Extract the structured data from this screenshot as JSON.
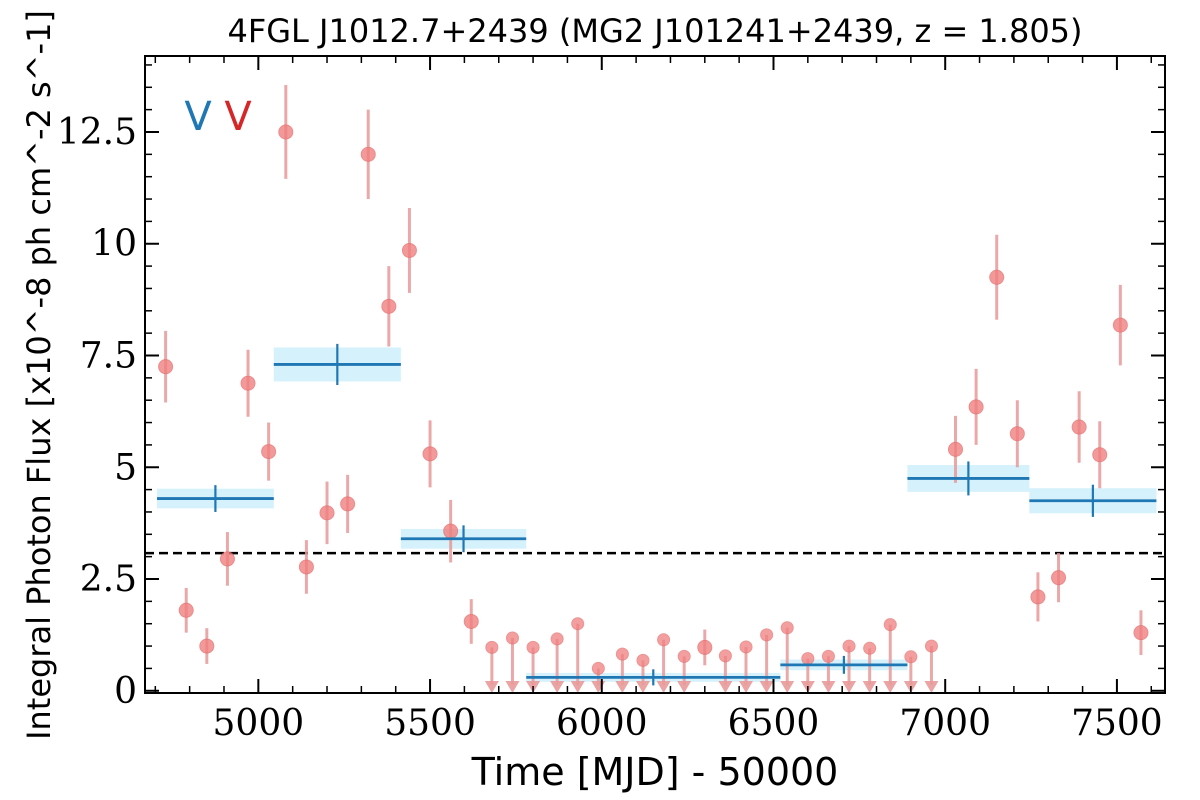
{
  "chart_data": {
    "type": "scatter",
    "title": "4FGL J1012.7+2439 (MG2 J101241+2439, z = 1.805)",
    "xlabel": "Time [MJD] - 50000",
    "ylabel": "Integral Photon Flux [x10^-8 ph cm^-2 s^-1]",
    "xlim": [
      4670,
      7640
    ],
    "ylim": [
      -0.05,
      14.2
    ],
    "xticks": [
      5000,
      5500,
      6000,
      6500,
      7000,
      7500
    ],
    "xtick_labels": [
      "5000",
      "5500",
      "6000",
      "6500",
      "7000",
      "7500"
    ],
    "yticks": [
      0,
      2.5,
      5,
      7.5,
      10,
      12.5
    ],
    "ytick_labels": [
      "0",
      "2.5",
      "5",
      "7.5",
      "10",
      "12.5"
    ],
    "grid": false,
    "reference_line": {
      "y": 3.08,
      "style": "dashed",
      "color": "#000000"
    },
    "markers": [
      {
        "label": "V",
        "color": "#1f77b4"
      },
      {
        "label": "V",
        "color": "#d62728"
      }
    ],
    "colors": {
      "points": "#f08080",
      "errorbars": "#e89a9a",
      "blocks": "#1f77b4",
      "block_band": "#cdeefb"
    },
    "series": [
      {
        "name": "",
        "type": "detections",
        "points": [
          {
            "x": 4730,
            "y": 7.25,
            "err": 0.8
          },
          {
            "x": 4790,
            "y": 1.8,
            "err": 0.5
          },
          {
            "x": 4850,
            "y": 1.0,
            "err": 0.4
          },
          {
            "x": 4910,
            "y": 2.95,
            "err": 0.6
          },
          {
            "x": 4970,
            "y": 6.88,
            "err": 0.75
          },
          {
            "x": 5030,
            "y": 5.35,
            "err": 0.65
          },
          {
            "x": 5080,
            "y": 12.5,
            "err": 1.05
          },
          {
            "x": 5140,
            "y": 2.77,
            "err": 0.6
          },
          {
            "x": 5200,
            "y": 3.98,
            "err": 0.7
          },
          {
            "x": 5260,
            "y": 4.18,
            "err": 0.65
          },
          {
            "x": 5320,
            "y": 12.0,
            "err": 1.0
          },
          {
            "x": 5380,
            "y": 8.6,
            "err": 0.9
          },
          {
            "x": 5440,
            "y": 9.85,
            "err": 0.95
          },
          {
            "x": 5500,
            "y": 5.3,
            "err": 0.75
          },
          {
            "x": 5560,
            "y": 3.57,
            "err": 0.7
          },
          {
            "x": 5620,
            "y": 1.55,
            "err": 0.5
          },
          {
            "x": 6300,
            "y": 0.97,
            "err": 0.4
          },
          {
            "x": 7030,
            "y": 5.4,
            "err": 0.75
          },
          {
            "x": 7090,
            "y": 6.35,
            "err": 0.85
          },
          {
            "x": 7150,
            "y": 9.25,
            "err": 0.95
          },
          {
            "x": 7210,
            "y": 5.75,
            "err": 0.75
          },
          {
            "x": 7270,
            "y": 2.1,
            "err": 0.55
          },
          {
            "x": 7330,
            "y": 2.53,
            "err": 0.55
          },
          {
            "x": 7390,
            "y": 5.9,
            "err": 0.8
          },
          {
            "x": 7450,
            "y": 5.28,
            "err": 0.75
          },
          {
            "x": 7510,
            "y": 8.18,
            "err": 0.9
          },
          {
            "x": 7570,
            "y": 1.3,
            "err": 0.5
          }
        ]
      },
      {
        "name": "",
        "type": "upper_limits",
        "points": [
          {
            "x": 5680,
            "y": 0.97
          },
          {
            "x": 5740,
            "y": 1.18
          },
          {
            "x": 5800,
            "y": 0.97
          },
          {
            "x": 5870,
            "y": 1.16
          },
          {
            "x": 5930,
            "y": 1.5
          },
          {
            "x": 5990,
            "y": 0.5
          },
          {
            "x": 6060,
            "y": 0.82
          },
          {
            "x": 6120,
            "y": 0.68
          },
          {
            "x": 6180,
            "y": 1.14
          },
          {
            "x": 6240,
            "y": 0.77
          },
          {
            "x": 6360,
            "y": 0.78
          },
          {
            "x": 6420,
            "y": 0.98
          },
          {
            "x": 6480,
            "y": 1.25
          },
          {
            "x": 6540,
            "y": 1.41
          },
          {
            "x": 6600,
            "y": 0.72
          },
          {
            "x": 6660,
            "y": 0.77
          },
          {
            "x": 6720,
            "y": 1.0
          },
          {
            "x": 6780,
            "y": 0.95
          },
          {
            "x": 6840,
            "y": 1.48
          },
          {
            "x": 6900,
            "y": 0.76
          },
          {
            "x": 6960,
            "y": 1.0
          }
        ]
      },
      {
        "name": "",
        "type": "bayesian_blocks",
        "blocks": [
          {
            "x0": 4705,
            "x1": 5045,
            "y": 4.3,
            "err": 0.22
          },
          {
            "x0": 5045,
            "x1": 5415,
            "y": 7.3,
            "err": 0.38
          },
          {
            "x0": 5415,
            "x1": 5780,
            "y": 3.4,
            "err": 0.22
          },
          {
            "x0": 5780,
            "x1": 6520,
            "y": 0.3,
            "err": 0.1
          },
          {
            "x0": 6520,
            "x1": 6890,
            "y": 0.58,
            "err": 0.12
          },
          {
            "x0": 6890,
            "x1": 7245,
            "y": 4.75,
            "err": 0.3
          },
          {
            "x0": 7245,
            "x1": 7615,
            "y": 4.25,
            "err": 0.28
          }
        ]
      }
    ]
  }
}
